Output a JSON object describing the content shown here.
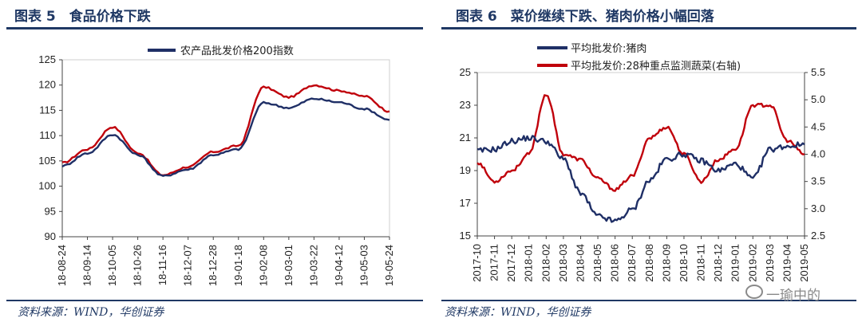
{
  "left": {
    "title": "图表 5　食品价格下跌",
    "source": "资料来源：WIND，华创证券",
    "chart_data": {
      "type": "line",
      "title": "",
      "legend_position": "top-center",
      "ylim": [
        90,
        125
      ],
      "yticks": [
        90,
        95,
        100,
        105,
        110,
        115,
        120,
        125
      ],
      "xticks": [
        "18-08-24",
        "18-09-14",
        "18-10-05",
        "18-10-26",
        "18-11-16",
        "18-12-07",
        "18-12-28",
        "19-01-18",
        "19-02-08",
        "19-03-01",
        "19-03-22",
        "19-04-12",
        "19-05-03",
        "19-05-24"
      ],
      "x": [
        "18-08-24",
        "18-09-14",
        "18-10-05",
        "18-10-26",
        "18-11-16",
        "18-12-07",
        "18-12-28",
        "19-01-18",
        "19-02-08",
        "19-03-01",
        "19-03-22",
        "19-04-12",
        "19-05-03",
        "19-05-24"
      ],
      "series": [
        {
          "name": "农产品批发价格200指数",
          "color": "#1f2f66",
          "values": [
            104.0,
            106.5,
            110.2,
            106.2,
            102.0,
            103.3,
            106.2,
            107.3,
            116.5,
            115.5,
            117.3,
            116.6,
            115.3,
            113.1
          ]
        },
        {
          "name": "",
          "color": "#c0000b",
          "values": [
            104.6,
            107.3,
            111.7,
            106.6,
            102.2,
            103.8,
            106.8,
            108.0,
            119.6,
            117.6,
            120.0,
            118.9,
            117.8,
            114.8
          ]
        }
      ]
    }
  },
  "right": {
    "title": "图表 6　菜价继续下跌、猪肉价格小幅回落",
    "source": "资料来源：WIND，华创证券",
    "watermark": "一瑜中的",
    "chart_data": {
      "type": "line",
      "title": "",
      "legend_position": "top-left",
      "ylim_left": [
        15,
        25
      ],
      "yticks_left": [
        15,
        17,
        19,
        21,
        23,
        25
      ],
      "ylim_right": [
        2.5,
        5.5
      ],
      "yticks_right": [
        "2.5",
        "3.0",
        "3.5",
        "4.0",
        "4.5",
        "5.0",
        "5.5"
      ],
      "xticks": [
        "2017-10",
        "2017-11",
        "2017-12",
        "2018-01",
        "2018-02",
        "2018-03",
        "2018-04",
        "2018-05",
        "2018-06",
        "2018-07",
        "2018-08",
        "2018-09",
        "2018-10",
        "2018-11",
        "2018-12",
        "2019-01",
        "2019-02",
        "2019-03",
        "2019-04",
        "2019-05"
      ],
      "x": [
        "2017-10",
        "2017-11",
        "2017-12",
        "2018-01",
        "2018-02",
        "2018-03",
        "2018-04",
        "2018-05",
        "2018-06",
        "2018-07",
        "2018-08",
        "2018-09",
        "2018-10",
        "2018-11",
        "2018-12",
        "2019-01",
        "2019-02",
        "2019-03",
        "2019-04",
        "2019-05"
      ],
      "series": [
        {
          "name": "平均批发价:猪肉",
          "axis": "left",
          "color": "#1f2f66",
          "values": [
            20.2,
            20.3,
            20.8,
            21.0,
            20.8,
            19.7,
            17.6,
            16.2,
            15.9,
            16.6,
            18.4,
            19.7,
            20.0,
            19.6,
            19.0,
            19.4,
            18.5,
            20.3,
            20.5,
            20.6
          ]
        },
        {
          "name": "平均批发价:28种重点监测蔬菜(右轴)",
          "axis": "right",
          "color": "#c0000b",
          "values": [
            3.85,
            3.5,
            3.7,
            4.0,
            5.1,
            4.0,
            3.9,
            3.55,
            3.35,
            3.6,
            4.3,
            4.5,
            4.0,
            3.5,
            3.9,
            4.1,
            4.9,
            4.9,
            4.25,
            4.0
          ]
        }
      ]
    }
  }
}
